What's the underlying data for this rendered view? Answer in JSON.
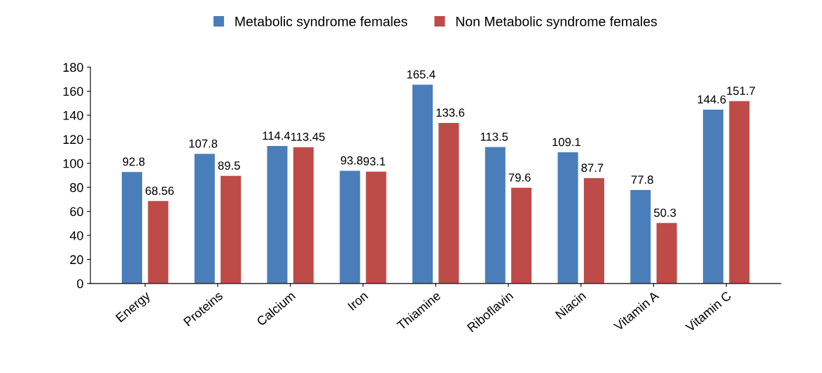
{
  "chart_data": {
    "type": "bar",
    "categories": [
      "Energy",
      "Proteins",
      "Calcium",
      "Iron",
      "Thiamine",
      "Riboflavin",
      "Niacin",
      "Vitamin A",
      "Vitamin C"
    ],
    "series": [
      {
        "name": "Metabolic syndrome females",
        "color": "#4a7ebb",
        "values": [
          92.8,
          107.8,
          114.4,
          93.8,
          165.4,
          113.5,
          109.1,
          77.8,
          144.6
        ]
      },
      {
        "name": "Non Metabolic syndrome females",
        "color": "#be4b48",
        "values": [
          68.56,
          89.5,
          113.45,
          93.1,
          133.6,
          79.6,
          87.7,
          50.3,
          151.7
        ]
      }
    ],
    "ylim": [
      0,
      180
    ],
    "yticks": [
      0,
      20,
      40,
      60,
      80,
      100,
      120,
      140,
      160,
      180
    ],
    "grid": false,
    "legend": "top",
    "data_labels": true
  }
}
